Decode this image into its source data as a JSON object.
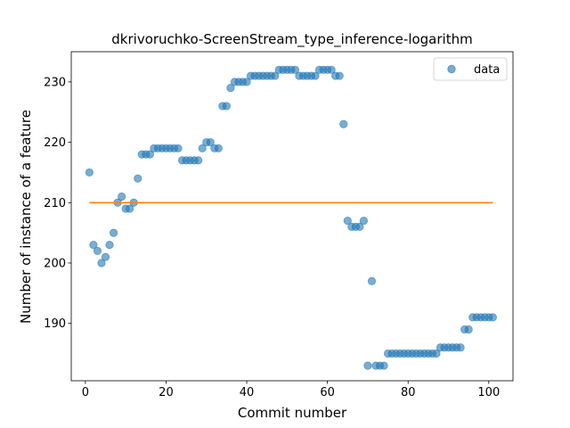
{
  "chart_data": {
    "type": "scatter",
    "title": "dkrivoruchko-ScreenStream_type_inference-logarithm",
    "xlabel": "Commit number",
    "ylabel": "Number of instance of a feature",
    "xlim": [
      -3.5,
      106
    ],
    "ylim": [
      180.5,
      235
    ],
    "xticks": [
      0,
      20,
      40,
      60,
      80,
      100
    ],
    "yticks": [
      190,
      200,
      210,
      220,
      230
    ],
    "legend": {
      "placement": "top-right",
      "entries": [
        "data"
      ]
    },
    "grid": false,
    "series": [
      {
        "name": "data",
        "kind": "scatter",
        "color": "#1f77b4",
        "x": [
          1,
          2,
          3,
          4,
          5,
          6,
          7,
          8,
          9,
          10,
          11,
          12,
          13,
          14,
          15,
          16,
          17,
          18,
          19,
          20,
          21,
          22,
          23,
          24,
          25,
          26,
          27,
          28,
          29,
          30,
          31,
          32,
          33,
          34,
          35,
          36,
          37,
          38,
          39,
          40,
          41,
          42,
          43,
          44,
          45,
          46,
          47,
          48,
          49,
          50,
          51,
          52,
          53,
          54,
          55,
          56,
          57,
          58,
          59,
          60,
          61,
          62,
          63,
          64,
          65,
          66,
          67,
          68,
          69,
          70,
          71,
          72,
          73,
          74,
          75,
          76,
          77,
          78,
          79,
          80,
          81,
          82,
          83,
          84,
          85,
          86,
          87,
          88,
          89,
          90,
          91,
          92,
          93,
          94,
          95,
          96,
          97,
          98,
          99,
          100,
          101
        ],
        "y": [
          215,
          203,
          202,
          200,
          201,
          203,
          205,
          210,
          211,
          209,
          209,
          210,
          214,
          218,
          218,
          218,
          219,
          219,
          219,
          219,
          219,
          219,
          219,
          217,
          217,
          217,
          217,
          217,
          219,
          220,
          220,
          219,
          219,
          226,
          226,
          229,
          230,
          230,
          230,
          230,
          231,
          231,
          231,
          231,
          231,
          231,
          231,
          232,
          232,
          232,
          232,
          232,
          231,
          231,
          231,
          231,
          231,
          232,
          232,
          232,
          232,
          231,
          231,
          223,
          207,
          206,
          206,
          206,
          207,
          183,
          197,
          183,
          183,
          183,
          185,
          185,
          185,
          185,
          185,
          185,
          185,
          185,
          185,
          185,
          185,
          185,
          185,
          186,
          186,
          186,
          186,
          186,
          186,
          189,
          189,
          191,
          191,
          191,
          191,
          191,
          191
        ]
      },
      {
        "name": "",
        "kind": "line",
        "color": "#ff7f0e",
        "x": [
          1,
          101
        ],
        "y": [
          210,
          210
        ]
      }
    ]
  }
}
